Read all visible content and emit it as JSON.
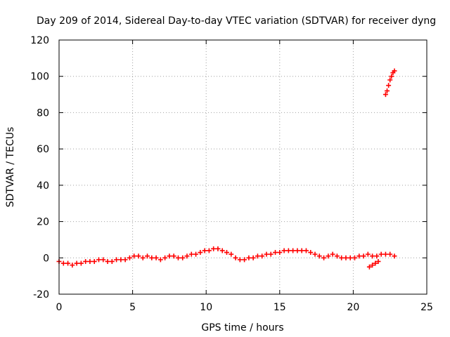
{
  "chart_data": {
    "type": "scatter",
    "title": "Day 209 of 2014, Sidereal Day-to-day VTEC variation (SDTVAR) for receiver dyng",
    "xlabel": "GPS time / hours",
    "ylabel": "SDTVAR / TECUs",
    "xlim": [
      0,
      25
    ],
    "ylim": [
      -20,
      120
    ],
    "xticks": [
      "0",
      "5",
      "10",
      "15",
      "20",
      "25"
    ],
    "yticks": [
      "-20",
      "0",
      "20",
      "40",
      "60",
      "80",
      "100",
      "120"
    ],
    "grid": true,
    "marker": "plus",
    "color": "#ff0000",
    "series": [
      {
        "name": "SDTVAR",
        "x": [
          0.0,
          0.3,
          0.6,
          0.9,
          1.2,
          1.5,
          1.8,
          2.1,
          2.4,
          2.7,
          3.0,
          3.3,
          3.6,
          3.9,
          4.2,
          4.5,
          4.8,
          5.1,
          5.4,
          5.7,
          6.0,
          6.3,
          6.6,
          6.9,
          7.2,
          7.5,
          7.8,
          8.1,
          8.4,
          8.7,
          9.0,
          9.3,
          9.6,
          9.9,
          10.2,
          10.5,
          10.8,
          11.1,
          11.4,
          11.7,
          12.0,
          12.3,
          12.6,
          12.9,
          13.2,
          13.5,
          13.8,
          14.1,
          14.4,
          14.7,
          15.0,
          15.3,
          15.6,
          15.9,
          16.2,
          16.5,
          16.8,
          17.1,
          17.4,
          17.7,
          18.0,
          18.3,
          18.6,
          18.9,
          19.2,
          19.5,
          19.8,
          20.1,
          20.4,
          20.7,
          21.0,
          21.3,
          21.6,
          21.9,
          22.2,
          22.5,
          22.8,
          21.1,
          21.3,
          21.5,
          21.7,
          22.2,
          22.3,
          22.4,
          22.5,
          22.6,
          22.7,
          22.8
        ],
        "y": [
          -2,
          -3,
          -3,
          -4,
          -3,
          -3,
          -2,
          -2,
          -2,
          -1,
          -1,
          -2,
          -2,
          -1,
          -1,
          -1,
          0,
          1,
          1,
          0,
          1,
          0,
          0,
          -1,
          0,
          1,
          1,
          0,
          0,
          1,
          2,
          2,
          3,
          4,
          4,
          5,
          5,
          4,
          3,
          2,
          0,
          -1,
          -1,
          0,
          0,
          1,
          1,
          2,
          2,
          3,
          3,
          4,
          4,
          4,
          4,
          4,
          4,
          3,
          2,
          1,
          0,
          1,
          2,
          1,
          0,
          0,
          0,
          0,
          1,
          1,
          2,
          1,
          1,
          2,
          2,
          2,
          1,
          -5,
          -4,
          -3,
          -2,
          90,
          92,
          95,
          98,
          100,
          102,
          103
        ]
      }
    ]
  }
}
